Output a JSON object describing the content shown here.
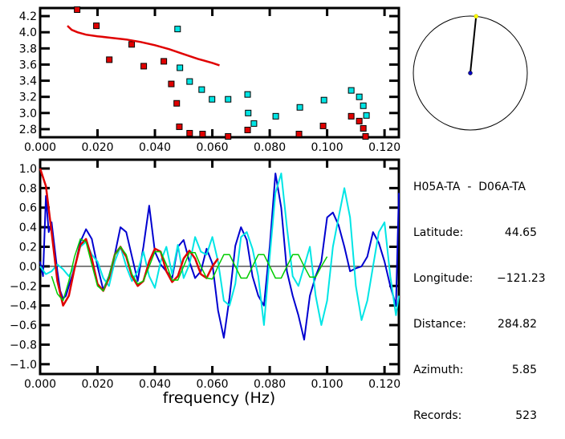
{
  "chart_data": [
    {
      "type": "scatter",
      "title": "",
      "xlabel": "",
      "ylabel": "",
      "xlim": [
        0.0,
        0.125
      ],
      "ylim": [
        2.7,
        4.3
      ],
      "xticks": [
        "0.000",
        "0.020",
        "0.040",
        "0.060",
        "0.080",
        "0.100",
        "0.120"
      ],
      "yticks": [
        "2.8",
        "3.0",
        "3.2",
        "3.4",
        "3.6",
        "3.8",
        "4.0",
        "4.2"
      ],
      "series": [
        {
          "name": "red-points",
          "color": "#e00000",
          "x": [
            0.0129,
            0.0196,
            0.0241,
            0.0319,
            0.0361,
            0.0431,
            0.0457,
            0.0476,
            0.0485,
            0.0521,
            0.0566,
            0.0655,
            0.0723,
            0.0902,
            0.0986,
            0.1084,
            0.1112,
            0.1126,
            0.1134
          ],
          "y": [
            4.28,
            4.08,
            3.66,
            3.85,
            3.58,
            3.64,
            3.36,
            3.12,
            2.83,
            2.75,
            2.74,
            2.71,
            2.79,
            2.74,
            2.84,
            2.96,
            2.9,
            2.81,
            2.71
          ]
        },
        {
          "name": "cyan-points",
          "color": "#00e5e5",
          "x": [
            0.0479,
            0.0487,
            0.0521,
            0.0563,
            0.0599,
            0.0655,
            0.0723,
            0.0725,
            0.0745,
            0.0821,
            0.0905,
            0.0989,
            0.1084,
            0.1112,
            0.1126,
            0.1137
          ],
          "y": [
            4.04,
            3.56,
            3.39,
            3.29,
            3.17,
            3.17,
            3.23,
            3.0,
            2.87,
            2.96,
            3.07,
            3.16,
            3.28,
            3.2,
            3.09,
            2.97
          ]
        },
        {
          "name": "red-dispersion-curve",
          "type": "line",
          "color": "#e00000",
          "x": [
            0.0095,
            0.011,
            0.013,
            0.016,
            0.02,
            0.025,
            0.03,
            0.035,
            0.04,
            0.045,
            0.05,
            0.055,
            0.06,
            0.0625
          ],
          "y": [
            4.08,
            4.03,
            4.0,
            3.97,
            3.95,
            3.93,
            3.91,
            3.88,
            3.84,
            3.79,
            3.73,
            3.67,
            3.62,
            3.59
          ]
        }
      ]
    },
    {
      "type": "line",
      "title": "",
      "xlabel": "frequency (Hz)",
      "ylabel": "",
      "xlim": [
        0.0,
        0.125
      ],
      "ylim": [
        -1.1,
        1.09
      ],
      "xticks": [
        "0.000",
        "0.020",
        "0.040",
        "0.060",
        "0.080",
        "0.100",
        "0.120"
      ],
      "yticks": [
        "1.0",
        "0.8",
        "0.6",
        "0.4",
        "0.2",
        "0.0",
        "−0.2",
        "−0.4",
        "−0.6",
        "−0.8",
        "−1.0"
      ],
      "zero_line": true,
      "series": [
        {
          "name": "observed-real",
          "color": "#0000d0",
          "x": [
            0.0,
            0.001,
            0.002,
            0.003,
            0.004,
            0.005,
            0.006,
            0.007,
            0.008,
            0.009,
            0.01,
            0.012,
            0.014,
            0.016,
            0.018,
            0.02,
            0.022,
            0.024,
            0.026,
            0.028,
            0.03,
            0.032,
            0.034,
            0.036,
            0.038,
            0.04,
            0.042,
            0.044,
            0.046,
            0.048,
            0.05,
            0.052,
            0.054,
            0.056,
            0.058,
            0.06,
            0.062,
            0.064,
            0.066,
            0.068,
            0.07,
            0.072,
            0.074,
            0.076,
            0.078,
            0.08,
            0.082,
            0.084,
            0.086,
            0.088,
            0.09,
            0.092,
            0.094,
            0.096,
            0.098,
            0.1,
            0.102,
            0.104,
            0.106,
            0.108,
            0.11,
            0.112,
            0.114,
            0.116,
            0.118,
            0.12,
            0.122,
            0.124,
            0.125
          ],
          "y": [
            0.05,
            -0.1,
            0.72,
            0.35,
            0.45,
            0.2,
            -0.05,
            -0.25,
            -0.33,
            -0.3,
            -0.2,
            -0.02,
            0.25,
            0.38,
            0.28,
            0.0,
            -0.24,
            -0.1,
            0.12,
            0.4,
            0.35,
            0.1,
            -0.15,
            0.2,
            0.62,
            0.15,
            0.02,
            -0.05,
            -0.12,
            0.2,
            0.27,
            0.05,
            -0.12,
            -0.05,
            0.18,
            0.03,
            -0.45,
            -0.73,
            -0.32,
            0.21,
            0.4,
            0.27,
            -0.1,
            -0.3,
            -0.4,
            0.2,
            0.95,
            0.6,
            -0.05,
            -0.3,
            -0.5,
            -0.75,
            -0.3,
            -0.1,
            0.05,
            0.5,
            0.55,
            0.42,
            0.2,
            -0.05,
            -0.02,
            0.0,
            0.1,
            0.35,
            0.24,
            0.05,
            -0.2,
            -0.4,
            0.75
          ]
        },
        {
          "name": "observed-imag",
          "color": "#00e5e5",
          "x": [
            0.0,
            0.002,
            0.004,
            0.006,
            0.008,
            0.01,
            0.012,
            0.014,
            0.016,
            0.018,
            0.02,
            0.022,
            0.024,
            0.026,
            0.028,
            0.03,
            0.032,
            0.034,
            0.036,
            0.038,
            0.04,
            0.042,
            0.044,
            0.046,
            0.048,
            0.05,
            0.052,
            0.054,
            0.056,
            0.058,
            0.06,
            0.062,
            0.064,
            0.066,
            0.068,
            0.07,
            0.072,
            0.074,
            0.076,
            0.078,
            0.08,
            0.082,
            0.084,
            0.086,
            0.088,
            0.09,
            0.092,
            0.094,
            0.096,
            0.098,
            0.1,
            0.102,
            0.104,
            0.106,
            0.108,
            0.11,
            0.112,
            0.114,
            0.116,
            0.118,
            0.12,
            0.122,
            0.124,
            0.125
          ],
          "y": [
            0.0,
            -0.08,
            -0.05,
            0.02,
            -0.03,
            -0.1,
            0.0,
            0.2,
            0.25,
            0.12,
            0.05,
            -0.12,
            -0.2,
            0.05,
            0.2,
            0.0,
            -0.15,
            -0.05,
            0.15,
            -0.1,
            -0.22,
            0.05,
            0.2,
            -0.08,
            0.22,
            -0.12,
            0.02,
            0.3,
            0.15,
            0.12,
            0.3,
            0.05,
            -0.35,
            -0.4,
            -0.18,
            0.3,
            0.35,
            0.18,
            -0.1,
            -0.6,
            0.1,
            0.75,
            0.95,
            0.4,
            -0.1,
            -0.2,
            0.0,
            0.2,
            -0.3,
            -0.6,
            -0.35,
            0.2,
            0.5,
            0.8,
            0.5,
            -0.2,
            -0.55,
            -0.35,
            0.0,
            0.35,
            0.45,
            -0.1,
            -0.5,
            -0.3
          ]
        },
        {
          "name": "model-red",
          "color": "#e00000",
          "x": [
            0.0,
            0.002,
            0.004,
            0.006,
            0.008,
            0.01,
            0.012,
            0.014,
            0.016,
            0.018,
            0.02,
            0.022,
            0.024,
            0.026,
            0.028,
            0.03,
            0.032,
            0.034,
            0.036,
            0.038,
            0.04,
            0.042,
            0.044,
            0.046,
            0.048,
            0.05,
            0.052,
            0.054,
            0.056,
            0.058,
            0.06,
            0.062
          ],
          "y": [
            1.0,
            0.82,
            0.35,
            -0.15,
            -0.4,
            -0.3,
            -0.02,
            0.22,
            0.28,
            0.08,
            -0.18,
            -0.25,
            -0.12,
            0.12,
            0.2,
            0.1,
            -0.1,
            -0.2,
            -0.15,
            0.05,
            0.18,
            0.15,
            -0.05,
            -0.16,
            -0.1,
            0.08,
            0.16,
            0.08,
            -0.08,
            -0.12,
            0.0,
            0.08
          ]
        },
        {
          "name": "model-green",
          "color": "#00cc00",
          "x": [
            0.004,
            0.006,
            0.008,
            0.01,
            0.012,
            0.014,
            0.016,
            0.018,
            0.02,
            0.022,
            0.024,
            0.026,
            0.028,
            0.03,
            0.032,
            0.034,
            0.036,
            0.038,
            0.04,
            0.042,
            0.044,
            0.046,
            0.048,
            0.05,
            0.052,
            0.054,
            0.056,
            0.058,
            0.06,
            0.062,
            0.064,
            0.066,
            0.068,
            0.07,
            0.072,
            0.074,
            0.076,
            0.078,
            0.08,
            0.082,
            0.084,
            0.086,
            0.088,
            0.09,
            0.092,
            0.094,
            0.096,
            0.098,
            0.1
          ],
          "y": [
            -0.1,
            -0.28,
            -0.35,
            -0.15,
            0.1,
            0.28,
            0.25,
            0.02,
            -0.2,
            -0.25,
            -0.1,
            0.12,
            0.2,
            0.12,
            -0.08,
            -0.18,
            -0.15,
            0.0,
            0.15,
            0.15,
            0.02,
            -0.14,
            -0.14,
            0.0,
            0.14,
            0.14,
            0.0,
            -0.12,
            -0.13,
            0.0,
            0.12,
            0.12,
            0.0,
            -0.12,
            -0.12,
            0.0,
            0.12,
            0.12,
            0.0,
            -0.12,
            -0.12,
            0.0,
            0.12,
            0.12,
            0.0,
            -0.11,
            -0.11,
            0.0,
            0.1
          ]
        }
      ]
    }
  ],
  "map": {
    "azimuth_deg": 5.85,
    "station_color": "#ffff00",
    "center_color": "#0000c0"
  },
  "info": {
    "pair": "H05A-TA  -  D06A-TA",
    "rows": [
      {
        "label": "Latitude:",
        "value": "44.65"
      },
      {
        "label": "Longitude:",
        "value": "−121.23"
      },
      {
        "label": "Distance:",
        "value": "284.82"
      },
      {
        "label": "Azimuth:",
        "value": "5.85"
      },
      {
        "label": "Records:",
        "value": "523"
      }
    ]
  }
}
